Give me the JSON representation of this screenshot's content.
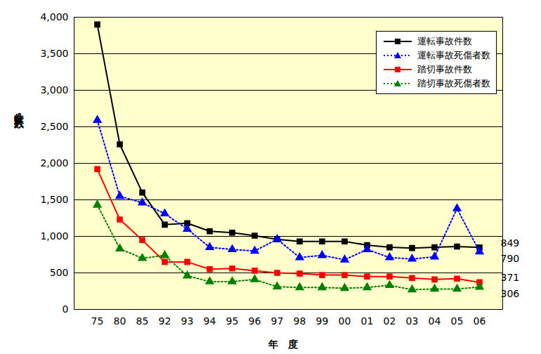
{
  "chart_data": {
    "type": "line",
    "categories": [
      "75",
      "80",
      "85",
      "92",
      "93",
      "94",
      "95",
      "96",
      "97",
      "98",
      "99",
      "00",
      "01",
      "02",
      "03",
      "04",
      "05",
      "06"
    ],
    "series": [
      {
        "name": "運転事故件数",
        "color": "#000000",
        "marker": "square",
        "line_style": "solid",
        "values": [
          3900,
          2260,
          1600,
          1160,
          1180,
          1070,
          1050,
          1010,
          960,
          930,
          930,
          930,
          880,
          850,
          840,
          850,
          860,
          849
        ],
        "end_label": "849"
      },
      {
        "name": "運転事故死傷者数",
        "color": "#0000ff",
        "marker": "triangle",
        "line_style": "dotted",
        "values": [
          2590,
          1550,
          1460,
          1310,
          1100,
          850,
          820,
          800,
          960,
          710,
          740,
          680,
          820,
          710,
          690,
          720,
          1380,
          790
        ],
        "end_label": "790"
      },
      {
        "name": "踏切事故件数",
        "color": "#ff0000",
        "marker": "square",
        "line_style": "solid",
        "values": [
          1920,
          1230,
          950,
          650,
          650,
          550,
          560,
          530,
          500,
          490,
          470,
          470,
          450,
          450,
          430,
          410,
          420,
          371
        ],
        "end_label": "371"
      },
      {
        "name": "踏切事故死傷者数",
        "color": "#008000",
        "marker": "triangle",
        "line_style": "dotted",
        "values": [
          1430,
          830,
          700,
          740,
          460,
          380,
          380,
          410,
          310,
          300,
          300,
          290,
          300,
          330,
          270,
          280,
          280,
          306
        ],
        "end_label": "306"
      }
    ],
    "xlabel": "年度",
    "ylabel": "件数・人数",
    "ylim": [
      0,
      4000
    ],
    "yticks": [
      0,
      500,
      {
        "value": 1000,
        "label": "1,000"
      },
      {
        "value": 1500,
        "label": "1,500"
      },
      {
        "value": 2000,
        "label": "2,000"
      },
      {
        "value": 2500,
        "label": "2,500"
      },
      {
        "value": 3000,
        "label": "3,000"
      },
      {
        "value": 3500,
        "label": "3,500"
      },
      {
        "value": 4000,
        "label": "4,000"
      }
    ],
    "grid": true,
    "legend": "upper right"
  }
}
